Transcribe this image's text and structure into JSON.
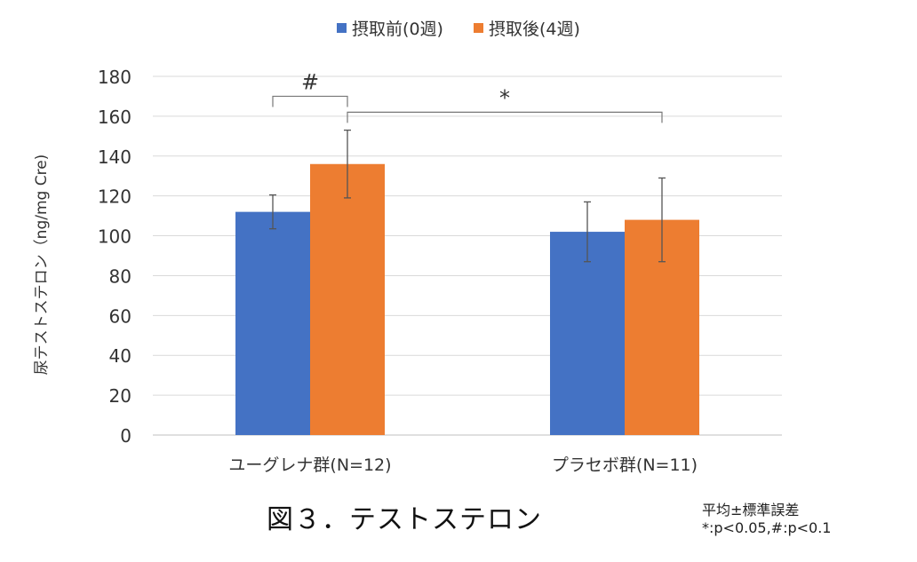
{
  "chart_data": {
    "type": "bar",
    "title": "",
    "categories": [
      "ユーグレナ群(N=12)",
      "プラセボ群(N=11)"
    ],
    "series": [
      {
        "name": "摂取前(0週)",
        "color": "#4472c4",
        "values": [
          112,
          102
        ],
        "error": [
          8.5,
          15
        ]
      },
      {
        "name": "摂取後(4週)",
        "color": "#ed7d31",
        "values": [
          136,
          108
        ],
        "error": [
          17,
          21
        ]
      }
    ],
    "ylabel": "尿テストステロン（ng/mg Cre)",
    "xlabel": "",
    "ylim": [
      0,
      180
    ],
    "yticks": [
      0,
      20,
      40,
      60,
      80,
      100,
      120,
      140,
      160,
      180
    ],
    "grid": true,
    "legend": "top-center",
    "annotations": [
      {
        "label": "#",
        "from": {
          "category": 0,
          "series": 0
        },
        "to": {
          "category": 0,
          "series": 1
        },
        "level": 170
      },
      {
        "label": "*",
        "from": {
          "category": 0,
          "series": 1
        },
        "to": {
          "category": 1,
          "series": 1
        },
        "level": 162
      }
    ]
  },
  "caption": "図３．テストステロン",
  "note_line1": "平均±標準誤差",
  "note_line2": "*:p<0.05,#:p<0.1"
}
